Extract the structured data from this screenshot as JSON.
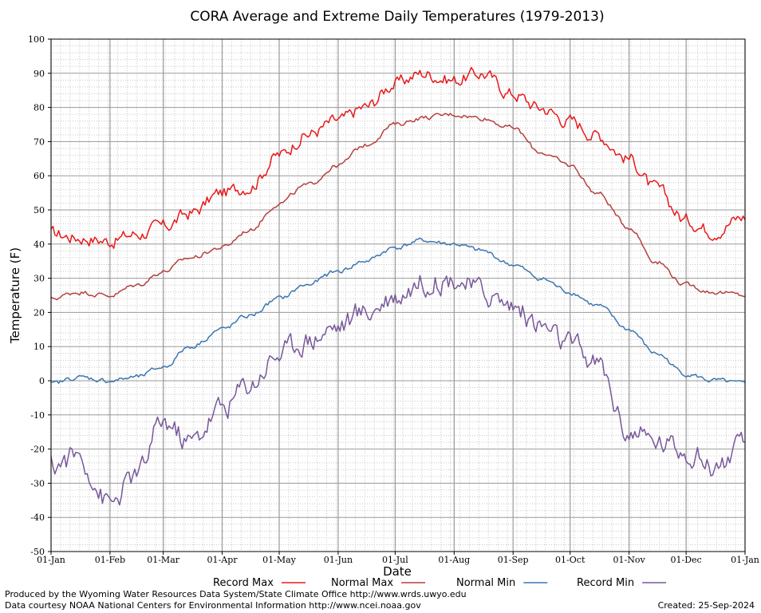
{
  "chart_data": {
    "type": "line",
    "title": "CORA Average and Extreme Daily Temperatures (1979-2013)",
    "xlabel": "Date",
    "ylabel": "Temperature (F)",
    "ylim": [
      -50,
      100
    ],
    "yticks": [
      -50,
      -40,
      -30,
      -20,
      -10,
      0,
      10,
      20,
      30,
      40,
      50,
      60,
      70,
      80,
      90,
      100
    ],
    "xlim": [
      1,
      366
    ],
    "xtick_days": [
      1,
      32,
      60,
      91,
      121,
      152,
      182,
      213,
      244,
      274,
      305,
      335,
      366
    ],
    "xtick_labels": [
      "01-Jan",
      "01-Feb",
      "01-Mar",
      "01-Apr",
      "01-May",
      "01-Jun",
      "01-Jul",
      "01-Aug",
      "01-Sep",
      "01-Oct",
      "01-Nov",
      "01-Dec",
      "01-Jan"
    ],
    "grid": true,
    "legend_position": "bottom",
    "x_days": [
      1,
      15,
      32,
      46,
      60,
      74,
      91,
      105,
      121,
      135,
      152,
      166,
      182,
      196,
      213,
      227,
      244,
      258,
      274,
      288,
      305,
      319,
      335,
      349,
      366
    ],
    "series": [
      {
        "name": "Record Max",
        "color": "#e8191a",
        "values": [
          43,
          42,
          41,
          43,
          45,
          49,
          55,
          57,
          66,
          72,
          76,
          80,
          87,
          90,
          88,
          90,
          84,
          80,
          76,
          72,
          65,
          56,
          47,
          44,
          48
        ]
      },
      {
        "name": "Normal Max",
        "color": "#b5403f",
        "values": [
          24,
          26,
          25,
          28,
          32,
          36,
          39,
          44,
          52,
          57,
          63,
          69,
          75,
          77,
          78,
          77,
          74,
          67,
          63,
          55,
          45,
          35,
          28,
          26,
          25
        ]
      },
      {
        "name": "Normal Min",
        "color": "#3d77b0",
        "values": [
          -1,
          1,
          0,
          1,
          4,
          10,
          15,
          19,
          24,
          28,
          32,
          35,
          39,
          41,
          40,
          38,
          34,
          30,
          26,
          22,
          15,
          8,
          2,
          0,
          -1
        ]
      },
      {
        "name": "Record Min",
        "color": "#77589a",
        "values": [
          -25,
          -22,
          -36,
          -28,
          -12,
          -18,
          -8,
          -1,
          8,
          12,
          16,
          20,
          25,
          29,
          30,
          26,
          22,
          16,
          10,
          5,
          -15,
          -18,
          -20,
          -25,
          -20
        ]
      }
    ]
  },
  "footer": {
    "produced": "Produced by the Wyoming Water Resources Data System/State Climate Office http://www.wrds.uwyo.edu",
    "courtesy": "Data courtesy NOAA National Centers for Environmental Information http://www.ncei.noaa.gov",
    "created": "Created: 25-Sep-2024"
  }
}
